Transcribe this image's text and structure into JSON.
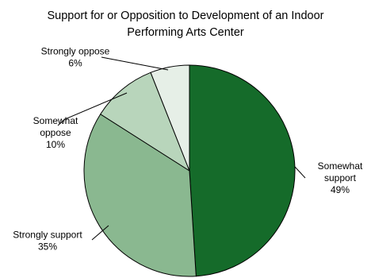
{
  "chart_data": {
    "type": "pie",
    "title_lines": [
      "Support for or Opposition to Development of an Indoor",
      "Performing Arts Center"
    ],
    "slices": [
      {
        "label_lines": [
          "Somewhat",
          "support"
        ],
        "pct_label": "49%",
        "value": 49,
        "color": "#156b2a"
      },
      {
        "label_lines": [
          "Strongly support"
        ],
        "pct_label": "35%",
        "value": 35,
        "color": "#8ab890"
      },
      {
        "label_lines": [
          "Somewhat",
          "oppose"
        ],
        "pct_label": "10%",
        "value": 10,
        "color": "#b8d5bb"
      },
      {
        "label_lines": [
          "Strongly oppose"
        ],
        "pct_label": "6%",
        "value": 6,
        "color": "#e6efe7"
      }
    ],
    "start_angle_deg": 0,
    "direction": "clockwise",
    "slice_border_color": "#000000",
    "legend": "none"
  }
}
